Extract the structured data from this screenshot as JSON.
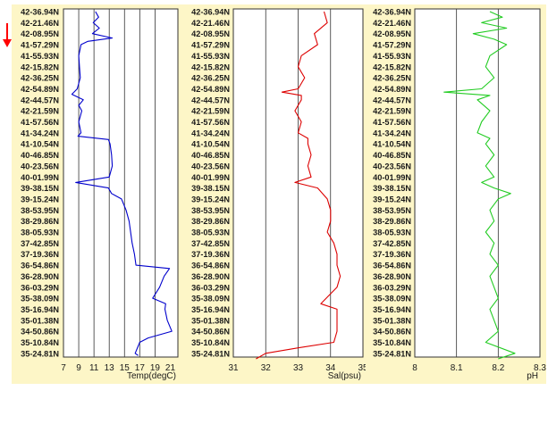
{
  "colors": {
    "panel_bg": "#fdf6c7",
    "plot_bg": "#ffffff",
    "grid": "#333333",
    "label_text": "#1a1a1a",
    "marker": "#ff0000"
  },
  "marker_icon": "red-down-arrow",
  "chart_data": [
    {
      "type": "line",
      "y_categories": [
        "42-36.94N",
        "42-21.46N",
        "42-08.95N",
        "41-57.29N",
        "41-55.93N",
        "42-15.82N",
        "42-36.25N",
        "42-54.89N",
        "42-44.57N",
        "42-21.59N",
        "41-57.56N",
        "41-34.24N",
        "41-10.54N",
        "40-46.85N",
        "40-23.56N",
        "40-01.99N",
        "39-38.15N",
        "39-15.24N",
        "38-53.95N",
        "38-29.86N",
        "38-05.93N",
        "37-42.85N",
        "37-19.36N",
        "36-54.86N",
        "36-28.90N",
        "36-03.29N",
        "35-38.09N",
        "35-16.94N",
        "35-01.38N",
        "34-50.86N",
        "35-10.84N",
        "35-24.81N"
      ],
      "xlabel": "Temp(degC)",
      "xlim": [
        7,
        22
      ],
      "x_ticks": [
        7,
        9,
        11,
        13,
        15,
        17,
        19,
        21
      ],
      "x_tick_labels": [
        "7",
        "9",
        "11",
        "13",
        "15",
        "17",
        "19",
        "21"
      ],
      "series": [
        {
          "color": "#0000cc",
          "points": [
            [
              11.2,
              0
            ],
            [
              11.6,
              0.5
            ],
            [
              10.9,
              1
            ],
            [
              11.7,
              1.5
            ],
            [
              10.8,
              2
            ],
            [
              13.4,
              2.4
            ],
            [
              10.2,
              2.7
            ],
            [
              9.3,
              3
            ],
            [
              9.0,
              4
            ],
            [
              9.1,
              5
            ],
            [
              9.2,
              6
            ],
            [
              8.8,
              7
            ],
            [
              8.1,
              7.5
            ],
            [
              9.6,
              8
            ],
            [
              9.0,
              8.5
            ],
            [
              9.4,
              9
            ],
            [
              9.0,
              10
            ],
            [
              9.3,
              11
            ],
            [
              8.9,
              11.3
            ],
            [
              12.9,
              11.6
            ],
            [
              13.1,
              12
            ],
            [
              13.3,
              13
            ],
            [
              13.4,
              14
            ],
            [
              13.0,
              15
            ],
            [
              8.6,
              15.5
            ],
            [
              12.9,
              16
            ],
            [
              13.3,
              16.5
            ],
            [
              14.6,
              17
            ],
            [
              15.2,
              18
            ],
            [
              15.6,
              19
            ],
            [
              15.8,
              20
            ],
            [
              16.0,
              21
            ],
            [
              16.3,
              22
            ],
            [
              16.5,
              23
            ],
            [
              20.9,
              23.3
            ],
            [
              20.2,
              24
            ],
            [
              19.6,
              25
            ],
            [
              18.7,
              26
            ],
            [
              20.4,
              26.5
            ],
            [
              20.3,
              27
            ],
            [
              20.6,
              28
            ],
            [
              21.2,
              29
            ],
            [
              18.1,
              29.6
            ],
            [
              17.0,
              30
            ],
            [
              16.4,
              31
            ],
            [
              16.8,
              31.2
            ]
          ]
        }
      ]
    },
    {
      "type": "line",
      "y_categories": [
        "42-36.94N",
        "42-21.46N",
        "42-08.95N",
        "41-57.29N",
        "41-55.93N",
        "42-15.82N",
        "42-36.25N",
        "42-54.89N",
        "42-44.57N",
        "42-21.59N",
        "41-57.56N",
        "41-34.24N",
        "41-10.54N",
        "40-46.85N",
        "40-23.56N",
        "40-01.99N",
        "39-38.15N",
        "39-15.24N",
        "38-53.95N",
        "38-29.86N",
        "38-05.93N",
        "37-42.85N",
        "37-19.36N",
        "36-54.86N",
        "36-28.90N",
        "36-03.29N",
        "35-38.09N",
        "35-16.94N",
        "35-01.38N",
        "34-50.86N",
        "35-10.84N",
        "35-24.81N"
      ],
      "xlabel": "Sal(psu)",
      "xlim": [
        31,
        35
      ],
      "x_ticks": [
        31,
        32,
        33,
        34,
        35
      ],
      "x_tick_labels": [
        "31",
        "32",
        "33",
        "34",
        "35"
      ],
      "series": [
        {
          "color": "#dd0000",
          "points": [
            [
              33.8,
              0
            ],
            [
              33.9,
              1
            ],
            [
              33.5,
              2
            ],
            [
              33.6,
              3
            ],
            [
              33.1,
              4
            ],
            [
              33.0,
              5
            ],
            [
              33.2,
              6
            ],
            [
              33.0,
              7
            ],
            [
              32.5,
              7.3
            ],
            [
              33.1,
              7.6
            ],
            [
              33.1,
              8
            ],
            [
              32.9,
              9
            ],
            [
              33.1,
              10
            ],
            [
              33.0,
              11
            ],
            [
              33.3,
              11.5
            ],
            [
              33.3,
              12
            ],
            [
              33.4,
              13
            ],
            [
              33.3,
              14
            ],
            [
              33.4,
              15
            ],
            [
              32.9,
              15.5
            ],
            [
              33.6,
              16
            ],
            [
              33.9,
              17
            ],
            [
              34.0,
              18
            ],
            [
              34.0,
              19
            ],
            [
              33.9,
              20
            ],
            [
              34.1,
              21
            ],
            [
              34.2,
              22
            ],
            [
              34.2,
              23
            ],
            [
              34.3,
              24
            ],
            [
              34.2,
              25
            ],
            [
              33.7,
              26.5
            ],
            [
              34.2,
              27
            ],
            [
              34.2,
              28
            ],
            [
              34.2,
              29
            ],
            [
              34.1,
              30
            ],
            [
              33.0,
              30.5
            ],
            [
              32.0,
              31
            ],
            [
              31.7,
              31.5
            ]
          ]
        }
      ]
    },
    {
      "type": "line",
      "y_categories": [
        "42-36.94N",
        "42-21.46N",
        "42-08.95N",
        "41-57.29N",
        "41-55.93N",
        "42-15.82N",
        "42-36.25N",
        "42-54.89N",
        "42-44.57N",
        "42-21.59N",
        "41-57.56N",
        "41-34.24N",
        "41-10.54N",
        "40-46.85N",
        "40-23.56N",
        "40-01.99N",
        "39-38.15N",
        "39-15.24N",
        "38-53.95N",
        "38-29.86N",
        "38-05.93N",
        "37-42.85N",
        "37-19.36N",
        "36-54.86N",
        "36-28.90N",
        "36-03.29N",
        "35-38.09N",
        "35-16.94N",
        "35-01.38N",
        "34-50.86N",
        "35-10.84N",
        "35-24.81N"
      ],
      "xlabel": "pH",
      "xlim": [
        8.0,
        8.3
      ],
      "x_ticks": [
        8.0,
        8.1,
        8.2,
        8.3
      ],
      "x_tick_labels": [
        "8",
        "8.1",
        "8.2",
        "8.3"
      ],
      "series": [
        {
          "color": "#22cc22",
          "points": [
            [
              8.18,
              0
            ],
            [
              8.21,
              0.5
            ],
            [
              8.16,
              1
            ],
            [
              8.22,
              1.5
            ],
            [
              8.14,
              2
            ],
            [
              8.19,
              2.5
            ],
            [
              8.22,
              3
            ],
            [
              8.18,
              4
            ],
            [
              8.17,
              5
            ],
            [
              8.19,
              6
            ],
            [
              8.16,
              7
            ],
            [
              8.07,
              7.3
            ],
            [
              8.18,
              7.6
            ],
            [
              8.15,
              8
            ],
            [
              8.18,
              9
            ],
            [
              8.16,
              10
            ],
            [
              8.15,
              11
            ],
            [
              8.18,
              11.5
            ],
            [
              8.17,
              12
            ],
            [
              8.19,
              13
            ],
            [
              8.17,
              14
            ],
            [
              8.19,
              15
            ],
            [
              8.16,
              15.5
            ],
            [
              8.19,
              16
            ],
            [
              8.23,
              16.5
            ],
            [
              8.2,
              17
            ],
            [
              8.18,
              18
            ],
            [
              8.19,
              19
            ],
            [
              8.17,
              20
            ],
            [
              8.19,
              21
            ],
            [
              8.18,
              22
            ],
            [
              8.2,
              23
            ],
            [
              8.18,
              24
            ],
            [
              8.19,
              25
            ],
            [
              8.2,
              26
            ],
            [
              8.18,
              27
            ],
            [
              8.19,
              28
            ],
            [
              8.2,
              29
            ],
            [
              8.17,
              30
            ],
            [
              8.24,
              31
            ],
            [
              8.2,
              31.5
            ]
          ]
        }
      ]
    }
  ]
}
